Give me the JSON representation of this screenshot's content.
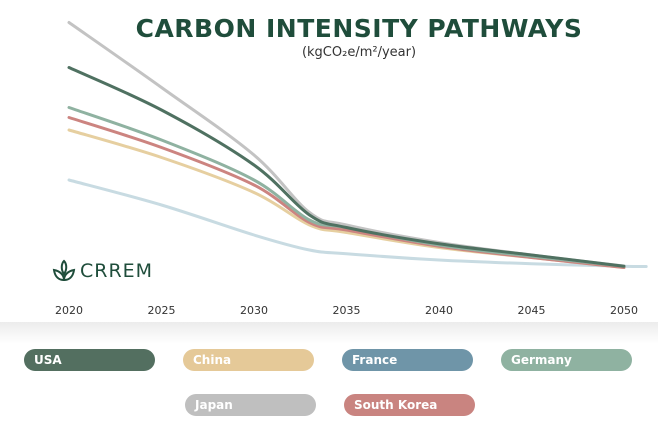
{
  "chart_data": {
    "type": "line",
    "title": "CARBON INTENSITY PATHWAYS",
    "subtitle": "(kgCO₂e/m²/year)",
    "xlabel": "",
    "ylabel": "",
    "x": [
      2020,
      2025,
      2030,
      2033,
      2035,
      2040,
      2045,
      2050
    ],
    "xticks": [
      "2020",
      "2025",
      "2030",
      "2035",
      "2040",
      "2045",
      "2050"
    ],
    "xlim": [
      2020,
      2051
    ],
    "ylim": [
      0,
      110
    ],
    "grid": false,
    "legend_position": "bottom",
    "series": [
      {
        "name": "Japan",
        "color": "#c3c3c3",
        "values": [
          103,
          77,
          50,
          27,
          22,
          15,
          10,
          5.6
        ]
      },
      {
        "name": "USA",
        "color": "#4f7161",
        "values": [
          85,
          68,
          46,
          26,
          21,
          14.5,
          10,
          5.5
        ]
      },
      {
        "name": "Germany",
        "color": "#8fb2a1",
        "values": [
          69,
          56,
          40,
          24,
          21,
          14,
          9.5,
          5.5
        ]
      },
      {
        "name": "South Korea",
        "color": "#cc8480",
        "values": [
          65,
          53,
          38,
          23,
          20,
          13.5,
          9,
          5
        ]
      },
      {
        "name": "China",
        "color": "#e6cfa0",
        "values": [
          60,
          49,
          35,
          22,
          19,
          13,
          9,
          5
        ]
      },
      {
        "name": "France",
        "color": "#c8dbe2",
        "values": [
          40,
          30,
          18,
          12,
          10.5,
          8,
          6.5,
          5.5
        ]
      }
    ]
  },
  "legend": [
    {
      "label": "USA",
      "color": "#536f60"
    },
    {
      "label": "China",
      "color": "#e5c998"
    },
    {
      "label": "France",
      "color": "#6f95a8"
    },
    {
      "label": "Germany",
      "color": "#8fb2a1"
    },
    {
      "label": "Japan",
      "color": "#bfbfbf"
    },
    {
      "label": "South Korea",
      "color": "#c98480"
    }
  ],
  "logo": {
    "text": "CRREM"
  }
}
